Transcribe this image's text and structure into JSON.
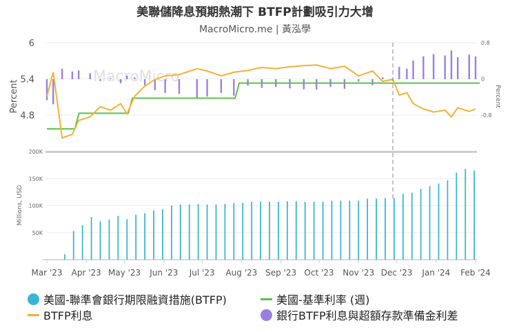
{
  "title": "美聯儲降息預期熱潮下 BTFP計劃吸引力大增",
  "subtitle": "MacroMicro.me | 黃泓學",
  "watermark": "MacroMicro",
  "colors": {
    "btfp": "#3bb4d8",
    "fed": "#5cc04a",
    "rate": "#f5b134",
    "spread": "#9b7fe0"
  },
  "legend": [
    {
      "label": "美國-聯準會銀行期限融資措施(BTFP)",
      "color": "#3bb4d8",
      "shape": "circle"
    },
    {
      "label": "美國-基準利率 (週)",
      "color": "#5cc04a",
      "shape": "line"
    },
    {
      "label": "BTFP利息",
      "color": "#f5b134",
      "shape": "line"
    },
    {
      "label": "銀行BTFP利息與超額存款準備金利差",
      "color": "#9b7fe0",
      "shape": "circle"
    }
  ],
  "chart_data": [
    {
      "type": "line",
      "ylabel": "Percent",
      "y2label": "Percent",
      "ylim": [
        4.2,
        6
      ],
      "yticks": [
        "6",
        "5.4",
        "4.8"
      ],
      "y2lim": [
        -1.6,
        0.8
      ],
      "y2ticks": [
        "0.8",
        "0",
        "-0.8"
      ],
      "marker_date": "2023-11-28",
      "series": [
        {
          "key": "rate",
          "dates": [
            "2023-03-01",
            "2023-03-06",
            "2023-03-13",
            "2023-03-21",
            "2023-03-26",
            "2023-04-04",
            "2023-04-12",
            "2023-04-20",
            "2023-04-28",
            "2023-05-03",
            "2023-05-09",
            "2023-05-17",
            "2023-05-25",
            "2023-06-02",
            "2023-06-13",
            "2023-06-27",
            "2023-07-05",
            "2023-07-16",
            "2023-07-26",
            "2023-08-06",
            "2023-08-17",
            "2023-08-28",
            "2023-09-08",
            "2023-09-19",
            "2023-09-29",
            "2023-10-10",
            "2023-10-21",
            "2023-11-01",
            "2023-11-12",
            "2023-11-20",
            "2023-11-28",
            "2023-12-03",
            "2023-12-09",
            "2023-12-14",
            "2023-12-22",
            "2023-12-30",
            "2024-01-08",
            "2024-01-13",
            "2024-01-18",
            "2024-01-27",
            "2024-02-01"
          ],
          "values": [
            5.11,
            5.51,
            4.42,
            4.48,
            4.71,
            4.77,
            4.94,
            4.88,
            4.99,
            4.82,
            5.11,
            5.28,
            5.39,
            5.45,
            5.47,
            5.57,
            5.53,
            5.45,
            5.51,
            5.54,
            5.59,
            5.57,
            5.6,
            5.62,
            5.63,
            5.57,
            5.61,
            5.45,
            5.53,
            5.36,
            5.39,
            5.13,
            5.17,
            4.99,
            4.9,
            4.85,
            4.88,
            4.77,
            4.92,
            4.86,
            4.9
          ]
        },
        {
          "key": "spread",
          "axis": "right",
          "values": [
            -0.46,
            -0.55,
            0.23,
            0.17,
            0.19,
            0.13,
            -0.04,
            0.02,
            -0.09,
            0.08,
            0.04,
            -0.13,
            -0.24,
            -0.3,
            -0.32,
            -0.42,
            -0.38,
            -0.3,
            -0.36,
            -0.14,
            -0.19,
            -0.17,
            -0.2,
            -0.22,
            -0.23,
            -0.17,
            -0.21,
            -0.05,
            -0.13,
            0.04,
            0.01,
            0.27,
            0.23,
            0.41,
            0.5,
            0.55,
            0.52,
            0.63,
            0.48,
            0.54,
            0.5
          ]
        },
        {
          "key": "fed",
          "step": true,
          "dates": [
            "2023-03-01",
            "2023-03-23",
            "2023-05-04",
            "2023-07-27",
            "2024-02-01"
          ],
          "values": [
            4.57,
            4.83,
            5.08,
            5.33,
            5.33
          ]
        }
      ]
    },
    {
      "type": "bar",
      "ylabel": "Millions, USD",
      "ylim": [
        0,
        200000
      ],
      "yticks": [
        "200K",
        "150K",
        "100K",
        "50K"
      ],
      "xticks": [
        "Mar '23",
        "Apr '23",
        "May '23",
        "Jun '23",
        "Jul '23",
        "Aug '23",
        "Sep '23",
        "Oct '23",
        "Nov '23",
        "Dec '23",
        "Jan '24",
        "Feb '24"
      ],
      "start_date": "2023-03-15",
      "interval": "weekly",
      "values": [
        10,
        53,
        64,
        79,
        71,
        74,
        81,
        75,
        83,
        86,
        91,
        93,
        100,
        102,
        102,
        103,
        102,
        102,
        103,
        105,
        105,
        107,
        107,
        107,
        107,
        108,
        108,
        107,
        107,
        107,
        109,
        109,
        109,
        109,
        113,
        113,
        114,
        114,
        122,
        124,
        131,
        136,
        141,
        147,
        161,
        168,
        165
      ],
      "unit": "thousand"
    }
  ]
}
